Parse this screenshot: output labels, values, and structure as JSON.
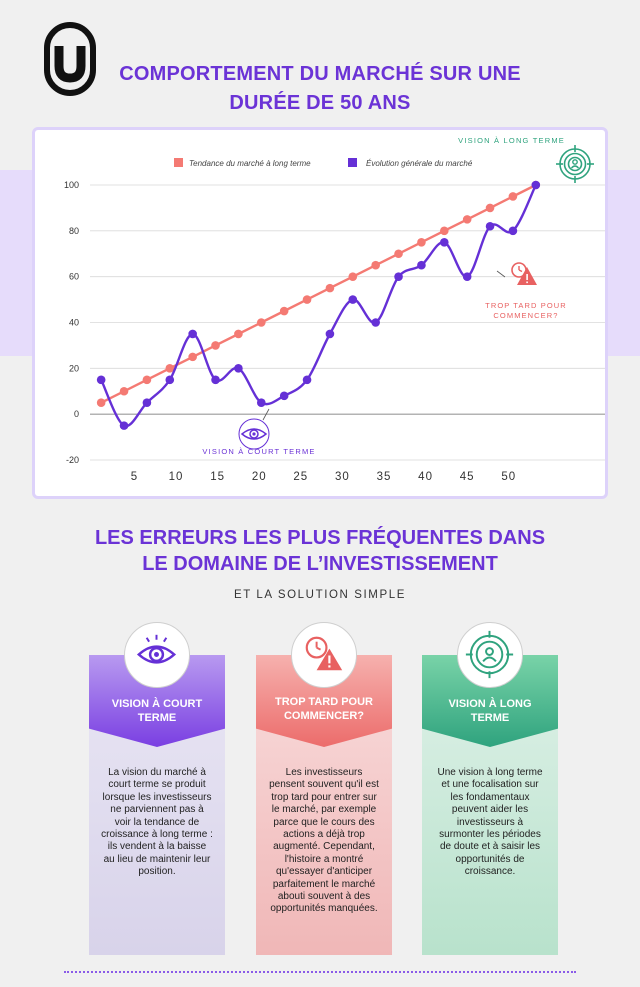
{
  "header": {
    "title_line1": "COMPORTEMENT DU MARCHÉ SUR UNE",
    "title_line2": "DURÉE DE 50 ANS"
  },
  "colors": {
    "primary": "#6b33d6",
    "trend": "#f47a73",
    "evolution": "#6530d6",
    "green": "#2fa37e",
    "red": "#e86161",
    "purple_band": "#e6dcfb"
  },
  "chart_data": {
    "type": "line",
    "legend_position": "top",
    "grid": true,
    "ylim": [
      -20,
      100
    ],
    "yticks": [
      100,
      80,
      60,
      40,
      20,
      0,
      -20
    ],
    "xtick_labels": [
      "5",
      "10",
      "15",
      "20",
      "25",
      "30",
      "35",
      "40",
      "45",
      "50"
    ],
    "xtick_values": [
      5,
      10,
      15,
      20,
      25,
      30,
      35,
      40,
      45,
      50
    ],
    "xlim": [
      0.5,
      57
    ],
    "series": [
      {
        "name": "Tendance du marché à long terme",
        "color": "#f47a73",
        "x": [
          1,
          3.75,
          6.5,
          9.25,
          12,
          14.75,
          17.5,
          20.25,
          23,
          25.75,
          28.5,
          31.25,
          34,
          36.75,
          39.5,
          42.25,
          45,
          47.75,
          50.5,
          53.25,
          56
        ],
        "y": [
          5,
          10,
          15,
          20,
          25,
          30,
          35,
          40,
          45,
          50,
          55,
          60,
          65,
          70,
          75,
          80,
          85,
          90,
          95,
          100,
          100
        ]
      },
      {
        "name": "Évolution générale du marché",
        "color": "#6530d6",
        "x": [
          1,
          3.75,
          6.5,
          9.25,
          12,
          14.75,
          17.5,
          20.25,
          23,
          25.75,
          28.5,
          31.25,
          34,
          36.75,
          39.5,
          42.25,
          45,
          47.75,
          50.5,
          53.25,
          56
        ],
        "y": [
          15,
          -5,
          5,
          15,
          35,
          15,
          20,
          5,
          8,
          15,
          35,
          50,
          40,
          60,
          65,
          75,
          60,
          82,
          80,
          100,
          100
        ]
      }
    ],
    "annotations": {
      "long_term": "VISION À LONG TERME",
      "too_late_line1": "TROP TARD POUR",
      "too_late_line2": "COMMENCER?",
      "short_term": "VISION À COURT TERME"
    }
  },
  "section": {
    "title_line1": "LES ERREURS LES PLUS FRÉQUENTES DANS",
    "title_line2": "LE DOMAINE DE L’INVESTISSEMENT",
    "subtitle": "ET LA SOLUTION SIMPLE"
  },
  "columns": [
    {
      "icon": "eye-icon",
      "head_line1": "VISION À COURT",
      "head_line2": "TERME",
      "text": "La vision du marché à court terme se produit lorsque les investisseurs ne parviennent pas à voir la tendance de croissance à long terme : ils vendent à la baisse au lieu de maintenir leur position."
    },
    {
      "icon": "clock-warning-icon",
      "head_line1": "TROP TARD POUR",
      "head_line2": "COMMENCER?",
      "text": "Les investisseurs pensent souvent qu'il est trop tard pour entrer sur le marché, par exemple parce que le cours des actions a déjà trop augmenté. Cependant, l'histoire a montré qu'essayer d'anticiper parfaitement le marché abouti souvent à des opportunités manquées."
    },
    {
      "icon": "target-person-icon",
      "head_line1": "VISION À LONG",
      "head_line2": "TERME",
      "text": "Une vision à long terme et une focalisation sur les fondamentaux peuvent aider les investisseurs à surmonter les périodes de doute et à saisir les opportunités de croissance."
    }
  ]
}
